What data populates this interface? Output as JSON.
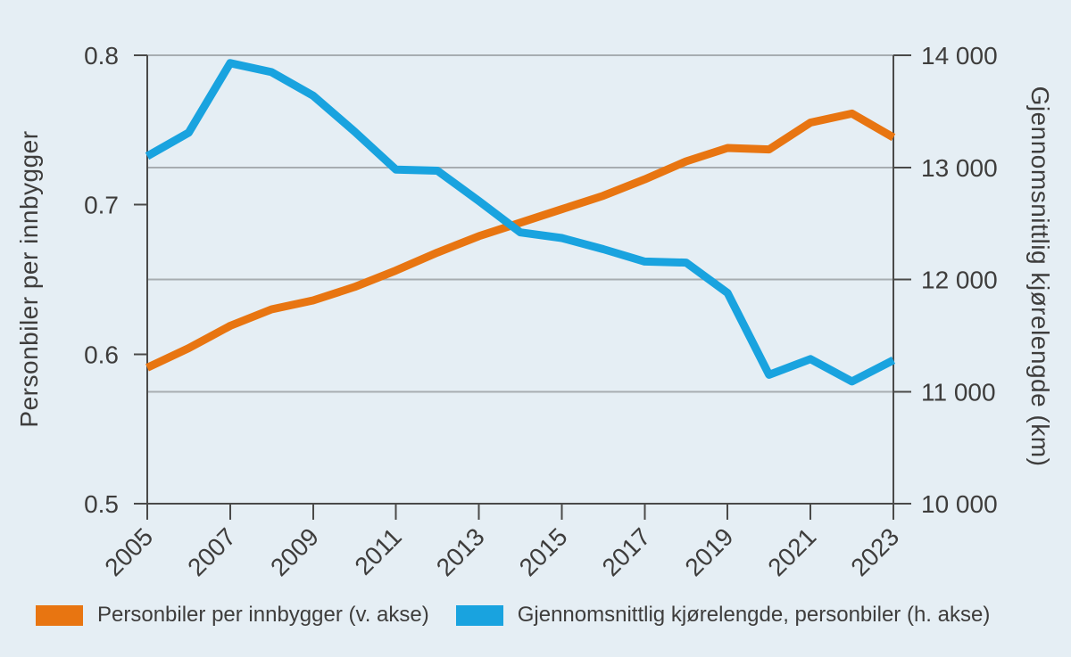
{
  "chart_data": {
    "type": "line",
    "x": [
      2005,
      2006,
      2007,
      2008,
      2009,
      2010,
      2011,
      2012,
      2013,
      2014,
      2015,
      2016,
      2017,
      2018,
      2019,
      2020,
      2021,
      2022,
      2023
    ],
    "x_tick_labels": [
      "2005",
      "2007",
      "2009",
      "2011",
      "2013",
      "2015",
      "2017",
      "2019",
      "2021",
      "2023"
    ],
    "left_axis": {
      "label": "Personbiler per innbygger",
      "min": 0.5,
      "max": 0.8,
      "ticks": [
        {
          "value": 0.8,
          "label": "0.8"
        },
        {
          "value": 0.7,
          "label": "0.7"
        },
        {
          "value": 0.6,
          "label": "0.6"
        },
        {
          "value": 0.5,
          "label": "0.5"
        }
      ]
    },
    "right_axis": {
      "label": "Gjennomsnittlig kjørelengde (km)",
      "min": 10000,
      "max": 14000,
      "ticks": [
        {
          "value": 14000,
          "label": "14 000"
        },
        {
          "value": 13000,
          "label": "13 000"
        },
        {
          "value": 12000,
          "label": "12 000"
        },
        {
          "value": 11000,
          "label": "11 000"
        },
        {
          "value": 10000,
          "label": "10 000"
        }
      ],
      "gridline_values": [
        14000,
        13000,
        12000,
        11000
      ]
    },
    "series": [
      {
        "name": "Personbiler per innbygger (v. akse)",
        "axis": "left",
        "color": "#e87511",
        "values": [
          0.591,
          0.604,
          0.619,
          0.63,
          0.636,
          0.645,
          0.656,
          0.668,
          0.679,
          0.688,
          0.697,
          0.706,
          0.717,
          0.729,
          0.738,
          0.737,
          0.755,
          0.761,
          0.745
        ]
      },
      {
        "name": "Gjennomsnittlig kjørelengde, personbiler (h. akse)",
        "axis": "right",
        "color": "#19a3df",
        "values": [
          13100,
          13310,
          13930,
          13850,
          13640,
          13320,
          12980,
          12970,
          12700,
          12420,
          12370,
          12270,
          12160,
          12150,
          11880,
          11150,
          11290,
          11090,
          11280
        ]
      }
    ],
    "grid": true,
    "legend_position": "bottom"
  },
  "colors": {
    "background": "#e5eef4",
    "axis": "#4a4a49",
    "gridline": "#a7adb1",
    "text": "#3e3d3c"
  }
}
